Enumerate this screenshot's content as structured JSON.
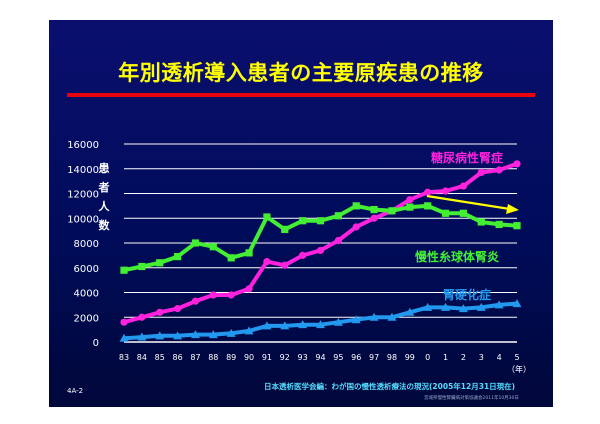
{
  "title": "年別透析導入患者の主要原疾患の推移",
  "page_number": "4A-2",
  "source": "日本透析医学会編：わが国の慢性透析療法の現況(2005年12月31日現在)",
  "source2": "宮城県慢性腎臓病対策協議会2011年10月30日",
  "colors": {
    "background": "#00095e",
    "title": "#ffff00",
    "rule": "#e8000b",
    "diabetic": "#ff22dd",
    "glomerulo": "#44ee33",
    "sclerosis": "#2299ee",
    "axis_text": "#ffffff",
    "trend_arrow": "#ffff00"
  },
  "chart_data": {
    "type": "line",
    "ylabel": "患者人数",
    "xunit": "（年）",
    "categories": [
      "83",
      "84",
      "85",
      "86",
      "87",
      "88",
      "89",
      "90",
      "91",
      "92",
      "93",
      "94",
      "95",
      "96",
      "97",
      "98",
      "99",
      "0",
      "1",
      "2",
      "3",
      "4",
      "5"
    ],
    "ylim": [
      0,
      16000
    ],
    "yticks": [
      0,
      2000,
      4000,
      6000,
      8000,
      10000,
      12000,
      14000,
      16000
    ],
    "grid": true,
    "series": [
      {
        "name": "糖尿病性腎症",
        "color": "#ff22dd",
        "marker": "circle",
        "values": [
          1600,
          2000,
          2400,
          2700,
          3300,
          3800,
          3800,
          4300,
          6500,
          6200,
          7000,
          7400,
          8200,
          9300,
          10000,
          10600,
          11500,
          12100,
          12200,
          12600,
          13700,
          13900,
          14400
        ]
      },
      {
        "name": "慢性糸球体腎炎",
        "color": "#44ee33",
        "marker": "square",
        "values": [
          5800,
          6100,
          6400,
          6900,
          8000,
          7700,
          6800,
          7200,
          10100,
          9100,
          9800,
          9800,
          10200,
          11000,
          10700,
          10600,
          10900,
          11000,
          10400,
          10400,
          9700,
          9500,
          9400
        ]
      },
      {
        "name": "腎硬化症",
        "color": "#2299ee",
        "marker": "triangle",
        "values": [
          300,
          400,
          500,
          500,
          600,
          600,
          700,
          900,
          1300,
          1300,
          1400,
          1400,
          1600,
          1800,
          2000,
          2000,
          2400,
          2800,
          2800,
          2700,
          2800,
          3000,
          3100
        ]
      }
    ]
  }
}
